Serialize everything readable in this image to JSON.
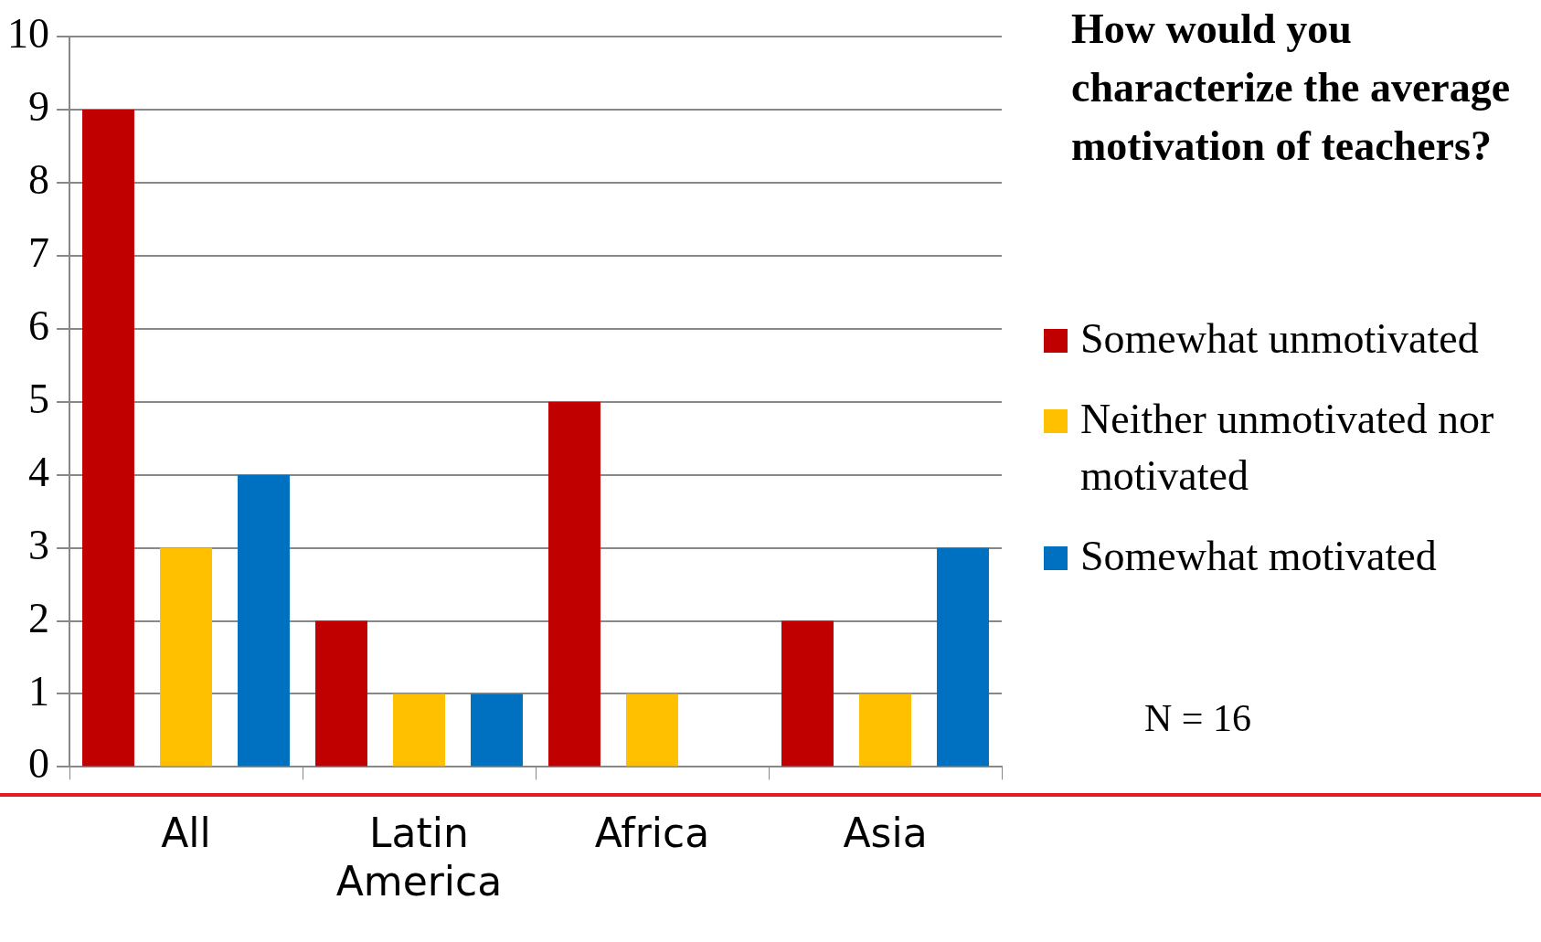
{
  "chart_data": {
    "type": "bar",
    "title": "How would you characterize the average motivation of teachers?",
    "categories": [
      "All",
      "Latin America",
      "Africa",
      "Asia"
    ],
    "series": [
      {
        "name": "Somewhat unmotivated",
        "color": "#c00000",
        "values": [
          9,
          2,
          5,
          2
        ]
      },
      {
        "name": "Neither unmotivated nor motivated",
        "color": "#ffc000",
        "values": [
          3,
          1,
          1,
          1
        ]
      },
      {
        "name": "Somewhat motivated",
        "color": "#0070c0",
        "values": [
          4,
          1,
          0,
          3
        ]
      }
    ],
    "ylim": [
      0,
      10
    ],
    "yticks": [
      0,
      1,
      2,
      3,
      4,
      5,
      6,
      7,
      8,
      9,
      10
    ],
    "grid": "y",
    "legend": "right",
    "annotations": [
      "N = 16"
    ]
  }
}
